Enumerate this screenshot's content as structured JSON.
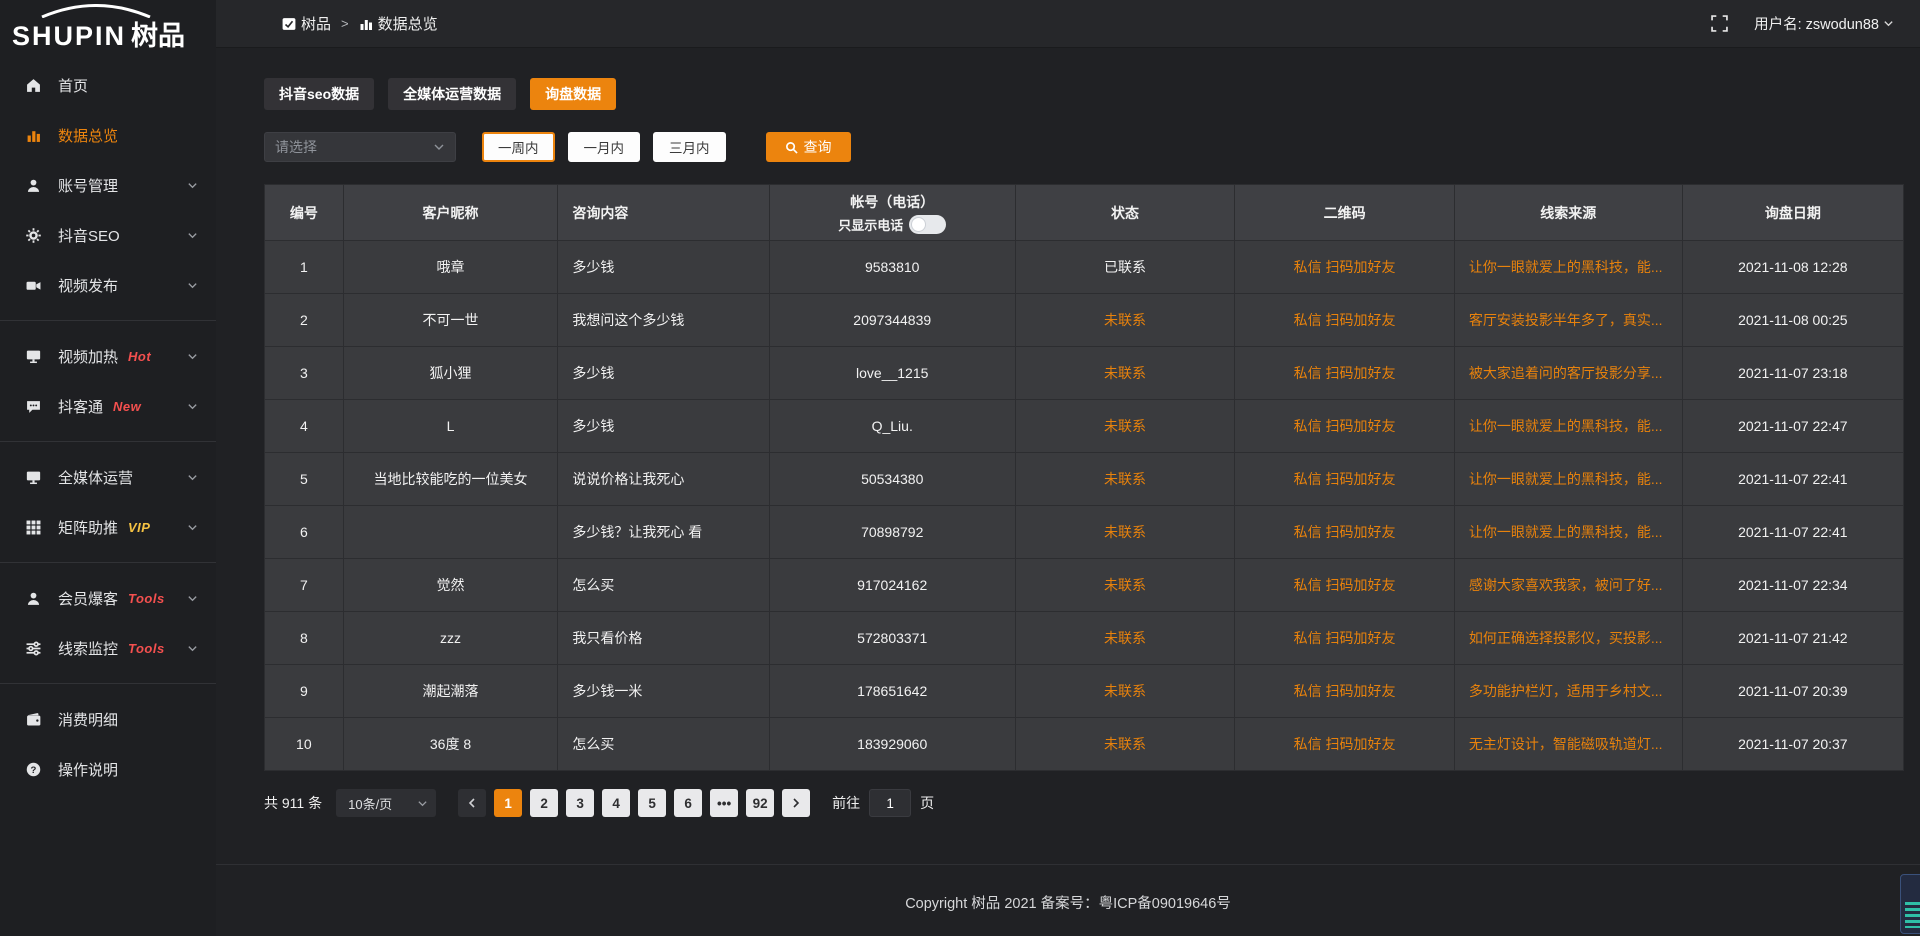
{
  "colors": {
    "accent": "#ec840e",
    "link_text": "#e8820c",
    "hot_badge": "#f4504f",
    "vip_badge": "#f6c343"
  },
  "logo": {
    "brand": "SHUPIN",
    "brand_cn": "树品"
  },
  "header": {
    "breadcrumb_root": "树品",
    "breadcrumb_sep": ">",
    "breadcrumb_current": "数据总览",
    "breadcrumb_root_icon": "app-icon",
    "breadcrumb_current_icon": "bar-chart-icon",
    "fullscreen_icon": "fullscreen-icon",
    "username": "用户名: zswodun88",
    "username_dropdown_icon": "chevron-down-icon"
  },
  "sidebar": {
    "items": [
      {
        "icon": "home",
        "label": "首页"
      },
      {
        "icon": "bar-chart",
        "label": "数据总览",
        "active": true
      },
      {
        "icon": "user",
        "label": "账号管理",
        "chevron": true
      },
      {
        "icon": "gear",
        "label": "抖音SEO",
        "chevron": true
      },
      {
        "icon": "video-camera",
        "label": "视频发布",
        "chevron": true
      },
      {
        "divider": true
      },
      {
        "icon": "monitor",
        "label": "视频加热",
        "badge": "Hot",
        "badge_class": "badge-red",
        "chevron": true
      },
      {
        "icon": "comment",
        "label": "抖客通",
        "badge": "New",
        "badge_class": "badge-red",
        "chevron": true
      },
      {
        "divider": true
      },
      {
        "icon": "monitor",
        "label": "全媒体运营",
        "chevron": true
      },
      {
        "icon": "grid",
        "label": "矩阵助推",
        "badge": "VIP",
        "badge_class": "badge-yellow",
        "chevron": true
      },
      {
        "divider": true
      },
      {
        "icon": "user",
        "label": "会员爆客",
        "badge": "Tools",
        "badge_class": "badge-red",
        "chevron": true
      },
      {
        "icon": "sliders",
        "label": "线索监控",
        "badge": "Tools",
        "badge_class": "badge-red",
        "chevron": true
      },
      {
        "divider": true
      },
      {
        "icon": "wallet",
        "label": "消费明细"
      },
      {
        "icon": "question",
        "label": "操作说明"
      }
    ]
  },
  "tabs": [
    {
      "label": "抖音seo数据"
    },
    {
      "label": "全媒体运营数据"
    },
    {
      "label": "询盘数据",
      "active": true
    }
  ],
  "filters": {
    "select_placeholder": "请选择",
    "period_buttons": [
      {
        "label": "一周内",
        "selected": true
      },
      {
        "label": "一月内"
      },
      {
        "label": "三月内"
      }
    ],
    "query_label": "查询",
    "query_icon": "search-icon"
  },
  "table": {
    "headers": [
      "编号",
      "客户昵称",
      "咨询内容",
      "帐号（电话）",
      "状态",
      "二维码",
      "线索来源",
      "询盘日期"
    ],
    "phone_toggle_label": "只显示电话",
    "rows": [
      {
        "id": "1",
        "nickname": "哦章",
        "content": "多少钱",
        "account": "9583810",
        "status": "已联系",
        "status_pending": false,
        "qrcode": "私信 扫码加好友",
        "source": "让你一眼就爱上的黑科技，能...",
        "date": "2021-11-08 12:28"
      },
      {
        "id": "2",
        "nickname": "不可一世",
        "content": "我想问这个多少钱",
        "account": "2097344839",
        "status": "未联系",
        "status_pending": true,
        "qrcode": "私信 扫码加好友",
        "source": "客厅安装投影半年多了，真实...",
        "date": "2021-11-08 00:25"
      },
      {
        "id": "3",
        "nickname": "狐小狸",
        "content": "多少钱",
        "account": "love__1215",
        "status": "未联系",
        "status_pending": true,
        "qrcode": "私信 扫码加好友",
        "source": "被大家追着问的客厅投影分享...",
        "date": "2021-11-07 23:18"
      },
      {
        "id": "4",
        "nickname": "L",
        "content": "多少钱",
        "account": "Q_Liu.",
        "status": "未联系",
        "status_pending": true,
        "qrcode": "私信 扫码加好友",
        "source": "让你一眼就爱上的黑科技，能...",
        "date": "2021-11-07 22:47"
      },
      {
        "id": "5",
        "nickname": "当地比较能吃的一位美女",
        "content": "说说价格让我死心",
        "account": "50534380",
        "status": "未联系",
        "status_pending": true,
        "qrcode": "私信 扫码加好友",
        "source": "让你一眼就爱上的黑科技，能...",
        "date": "2021-11-07 22:41"
      },
      {
        "id": "6",
        "nickname": "",
        "content": "多少钱？让我死心 看",
        "account": "70898792",
        "status": "未联系",
        "status_pending": true,
        "qrcode": "私信 扫码加好友",
        "source": "让你一眼就爱上的黑科技，能...",
        "date": "2021-11-07 22:41"
      },
      {
        "id": "7",
        "nickname": "觉然",
        "content": "怎么买",
        "account": "917024162",
        "status": "未联系",
        "status_pending": true,
        "qrcode": "私信 扫码加好友",
        "source": "感谢大家喜欢我家，被问了好...",
        "date": "2021-11-07 22:34"
      },
      {
        "id": "8",
        "nickname": "zzz",
        "content": "我只看价格",
        "account": "572803371",
        "status": "未联系",
        "status_pending": true,
        "qrcode": "私信 扫码加好友",
        "source": "如何正确选择投影仪，买投影...",
        "date": "2021-11-07 21:42"
      },
      {
        "id": "9",
        "nickname": "潮起潮落",
        "content": "多少钱一米",
        "account": "178651642",
        "status": "未联系",
        "status_pending": true,
        "qrcode": "私信 扫码加好友",
        "source": "多功能护栏灯，适用于乡村文...",
        "date": "2021-11-07 20:39"
      },
      {
        "id": "10",
        "nickname": "36度 8",
        "content": "怎么买",
        "account": "183929060",
        "status": "未联系",
        "status_pending": true,
        "qrcode": "私信 扫码加好友",
        "source": "无主灯设计，智能磁吸轨道灯...",
        "date": "2021-11-07 20:37"
      }
    ]
  },
  "pagination": {
    "total_label": "共 911 条",
    "page_size": "10条/页",
    "pages": [
      {
        "label": "1",
        "active": true
      },
      {
        "label": "2"
      },
      {
        "label": "3"
      },
      {
        "label": "4"
      },
      {
        "label": "5"
      },
      {
        "label": "6"
      },
      {
        "label": "•••"
      },
      {
        "label": "92"
      }
    ],
    "goto_label": "前往",
    "goto_value": "1",
    "goto_suffix": "页"
  },
  "footer": {
    "copyright": "Copyright 树品 2021 备案号：粤ICP备09019646号"
  }
}
